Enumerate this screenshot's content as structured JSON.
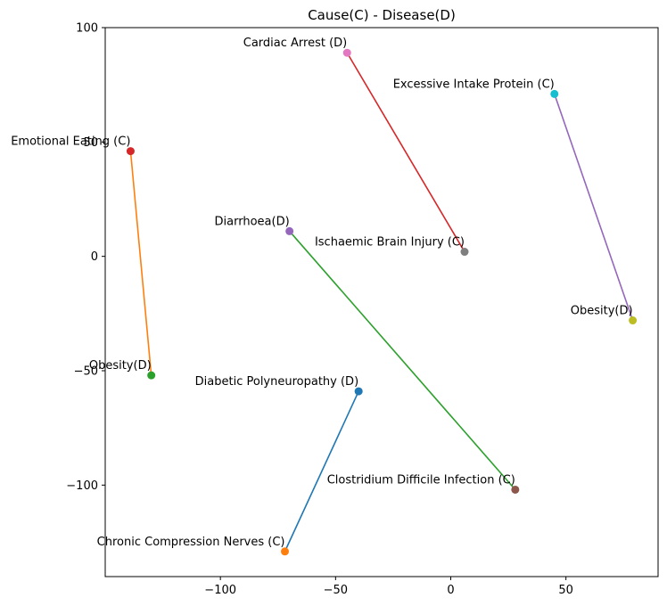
{
  "chart_data": {
    "type": "scatter",
    "title": "Cause(C) - Disease(D)",
    "xlabel": "",
    "ylabel": "",
    "xlim": [
      -150,
      90
    ],
    "ylim": [
      -140,
      100
    ],
    "xticks": [
      -100,
      -50,
      0,
      50
    ],
    "yticks": [
      -100,
      -50,
      0,
      50,
      100
    ],
    "grid": false,
    "links": [
      {
        "line_color": "#1f77b4",
        "points": [
          {
            "label": "Chronic Compression Nerves (C)",
            "x": -72,
            "y": -129,
            "color": "#ff7f0e"
          },
          {
            "label": "Diabetic Polyneuropathy (D)",
            "x": -40,
            "y": -59,
            "color": "#1f77b4"
          }
        ]
      },
      {
        "line_color": "#ff7f0e",
        "points": [
          {
            "label": "Emotional Eating (C)",
            "x": -139,
            "y": 46,
            "color": "#d62728"
          },
          {
            "label": "Obesity(D)",
            "x": -130,
            "y": -52,
            "color": "#2ca02c"
          }
        ]
      },
      {
        "line_color": "#2ca02c",
        "points": [
          {
            "label": "Clostridium Difficile Infection (C)",
            "x": 28,
            "y": -102,
            "color": "#8c564b"
          },
          {
            "label": "Diarrhoea(D)",
            "x": -70,
            "y": 11,
            "color": "#9467bd"
          }
        ]
      },
      {
        "line_color": "#d62728",
        "points": [
          {
            "label": "Ischaemic Brain Injury (C)",
            "x": 6,
            "y": 2,
            "color": "#7f7f7f"
          },
          {
            "label": "Cardiac Arrest (D)",
            "x": -45,
            "y": 89,
            "color": "#e377c2"
          }
        ]
      },
      {
        "line_color": "#9467bd",
        "points": [
          {
            "label": "Excessive Intake Protein (C)",
            "x": 45,
            "y": 71,
            "color": "#17becf"
          },
          {
            "label": "Obesity(D)",
            "x": 79,
            "y": -28,
            "color": "#bcbd22"
          }
        ]
      }
    ]
  }
}
